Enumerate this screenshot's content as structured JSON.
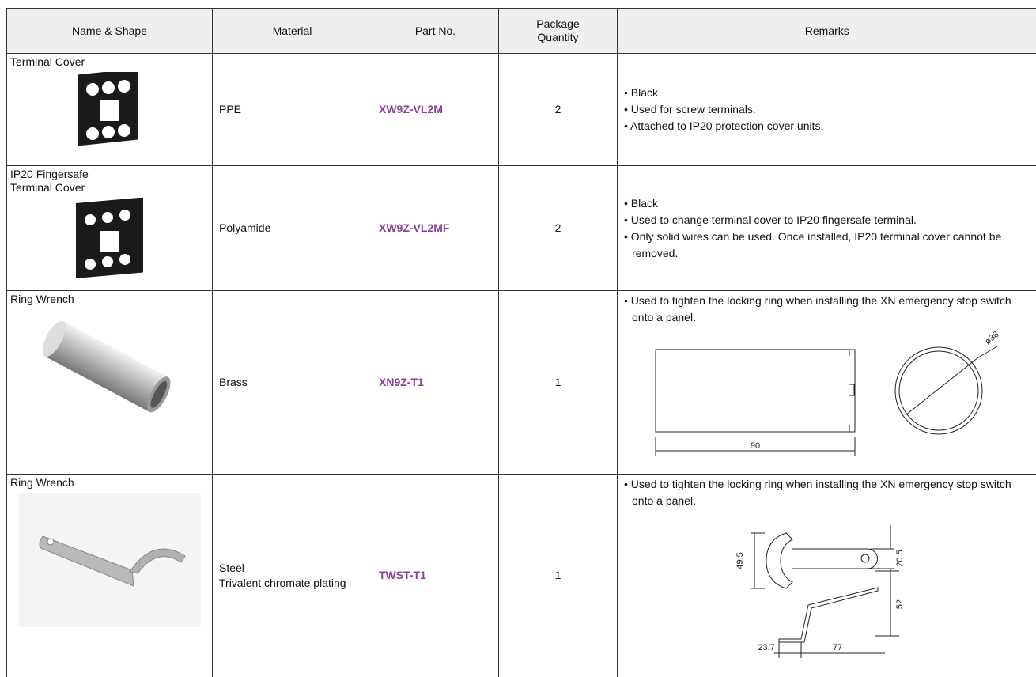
{
  "table": {
    "header": [
      "Name & Shape",
      "Material",
      "Part No.",
      "Package Quantity",
      "Remarks"
    ],
    "rows": [
      {
        "name": [
          "Terminal Cover"
        ],
        "material": [
          "PPE"
        ],
        "part_no": "XW9Z-VL2M",
        "quantity": "2",
        "remarks": [
          "Black",
          "Used for screw terminals.",
          "Attached to IP20 protection cover units."
        ]
      },
      {
        "name": [
          "IP20 Fingersafe",
          "Terminal Cover"
        ],
        "material": [
          "Polyamide"
        ],
        "part_no": "XW9Z-VL2MF",
        "quantity": "2",
        "remarks": [
          "Black",
          "Used to change terminal cover to IP20 fingersafe terminal.",
          "Only solid wires can be used. Once installed, IP20 terminal cover cannot be removed."
        ]
      },
      {
        "name": [
          "Ring Wrench"
        ],
        "material": [
          "Brass"
        ],
        "part_no": "XN9Z-T1",
        "quantity": "1",
        "remarks": [
          "Used to tighten the locking ring when installing the XN emergency stop switch onto a panel."
        ],
        "drawing_labels": [
          "ø38",
          "90"
        ]
      },
      {
        "name": [
          "Ring Wrench"
        ],
        "material": [
          "Steel",
          "Trivalent chromate plating"
        ],
        "part_no": "TWST-T1",
        "quantity": "1",
        "remarks": [
          "Used to tighten the locking ring when installing the XN emergency stop switch onto a panel."
        ],
        "drawing_labels": [
          "49.5",
          "20.5",
          "52",
          "23.7",
          "77"
        ]
      }
    ]
  }
}
